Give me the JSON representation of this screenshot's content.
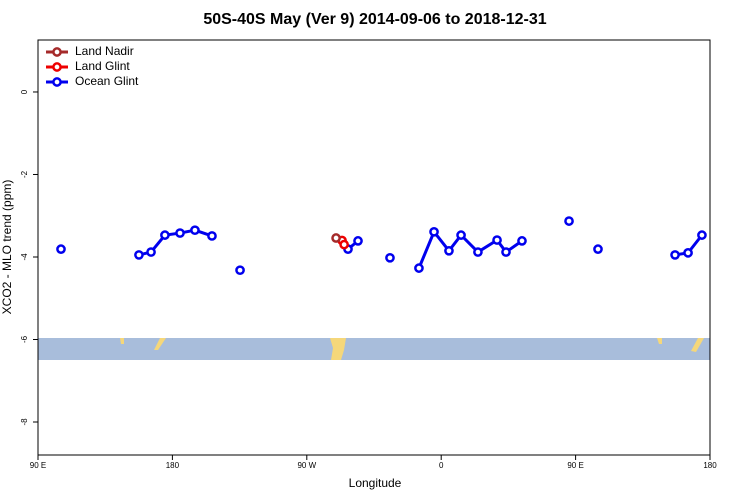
{
  "chart_data": {
    "type": "line",
    "title": "50S-40S May (Ver 9)   2014-09-06 to 2018-12-31",
    "x_label": "Longitude",
    "y_label": "XCO2 - MLO trend (ppm)",
    "xlim": [
      90,
      540
    ],
    "ylim": [
      -8.8,
      1.26
    ],
    "xticks": [
      {
        "value": 90,
        "label": "90 E"
      },
      180,
      {
        "value": 270,
        "label": "90 W"
      },
      {
        "value": 360,
        "label": "0"
      },
      {
        "value": 450,
        "label": "90 E"
      },
      {
        "value": 540,
        "label": "180"
      }
    ],
    "yticks": [
      0,
      -2,
      -4,
      -6,
      -8
    ],
    "legend": "top-left",
    "series": [
      {
        "name": "Land Nadir",
        "color": "#a52a2a",
        "x": [
          289.6
        ],
        "values": [
          -3.54
        ]
      },
      {
        "name": "Land Glint",
        "color": "#ee0000",
        "x": [
          293.6,
          295.0
        ],
        "values": [
          -3.6,
          -3.7
        ]
      },
      {
        "name": "Ocean Glint",
        "color": "#0000ee",
        "x": [
          105.4,
          null,
          157.6,
          165.7,
          175.0,
          185.1,
          195.1,
          206.5,
          null,
          225.3,
          null,
          297.6,
          304.3,
          null,
          325.7,
          null,
          345.1,
          355.2,
          365.2,
          373.3,
          384.6,
          397.4,
          403.4,
          414.1,
          null,
          445.6,
          null,
          465.0,
          null,
          516.6,
          525.3,
          534.6
        ],
        "values": [
          -3.81,
          null,
          -3.95,
          -3.88,
          -3.47,
          -3.42,
          -3.35,
          -3.49,
          null,
          -4.32,
          null,
          -3.81,
          -3.61,
          null,
          -4.02,
          null,
          -4.27,
          -3.39,
          -3.85,
          -3.47,
          -3.88,
          -3.59,
          -3.88,
          -3.61,
          null,
          -3.13,
          null,
          -3.81,
          null,
          -3.95,
          -3.9,
          -3.47
        ]
      }
    ]
  }
}
